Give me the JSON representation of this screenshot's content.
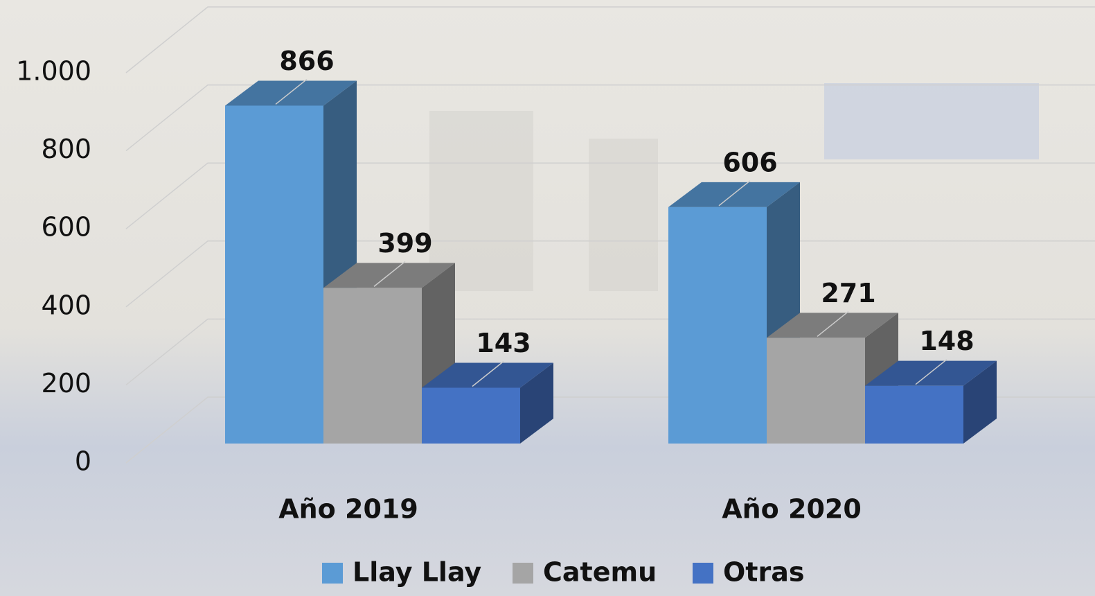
{
  "chart_data": {
    "type": "bar3d",
    "categories": [
      "Año 2019",
      "Año 2020"
    ],
    "series": [
      {
        "name": "Llay Llay",
        "color": "#5b9bd5",
        "values": [
          866,
          606
        ]
      },
      {
        "name": "Catemu",
        "color": "#a5a5a5",
        "values": [
          399,
          271
        ]
      },
      {
        "name": "Otras",
        "color": "#4472c4",
        "values": [
          143,
          148
        ]
      }
    ],
    "ylim": [
      0,
      1000
    ],
    "yticks": [
      0,
      200,
      400,
      600,
      800,
      {
        "value": 1000,
        "label": "1.000"
      }
    ],
    "grid": true
  }
}
